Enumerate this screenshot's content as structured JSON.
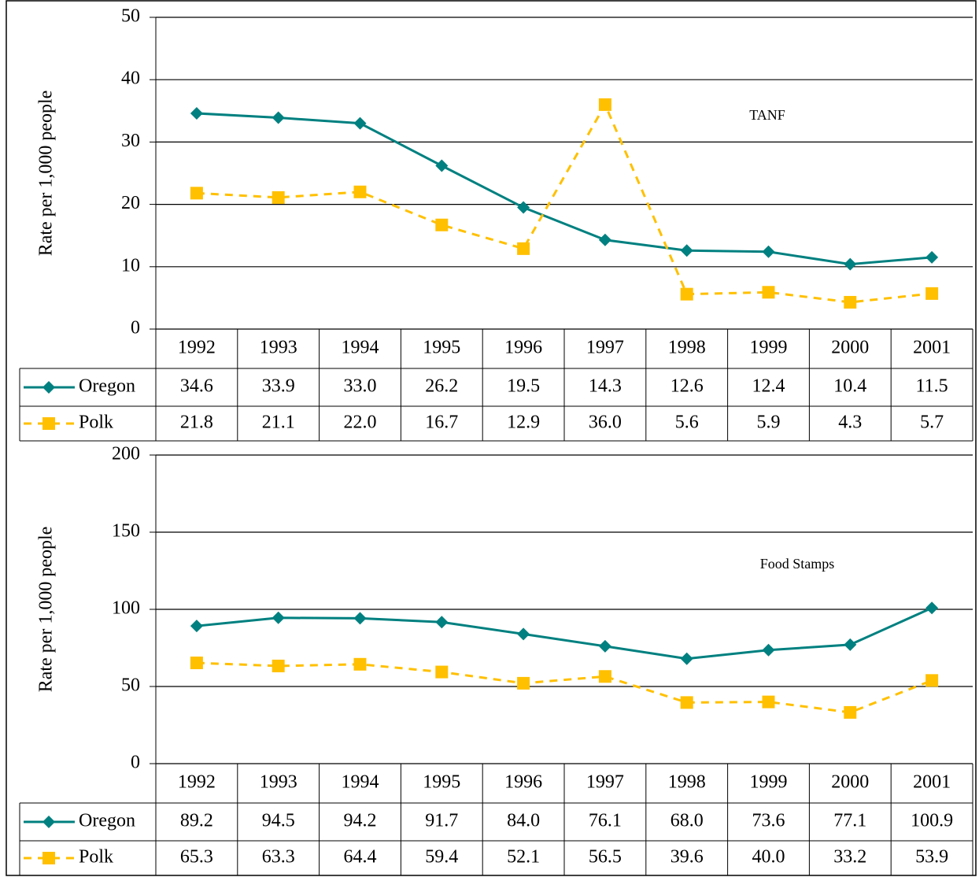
{
  "chart_data": [
    {
      "type": "line",
      "annotation": "TANF",
      "y_label": "Rate per 1,000 people",
      "categories": [
        "1992",
        "1993",
        "1994",
        "1995",
        "1996",
        "1997",
        "1998",
        "1999",
        "2000",
        "2001"
      ],
      "series": [
        {
          "name": "Oregon",
          "color": "#008080",
          "marker": "diamond",
          "dashed": false,
          "values": [
            34.6,
            33.9,
            33.0,
            26.2,
            19.5,
            14.3,
            12.6,
            12.4,
            10.4,
            11.5
          ],
          "value_labels": [
            "34.6",
            "33.9",
            "33.0",
            "26.2",
            "19.5",
            "14.3",
            "12.6",
            "12.4",
            "10.4",
            "11.5"
          ]
        },
        {
          "name": "Polk",
          "color": "#ffc000",
          "marker": "square",
          "dashed": true,
          "values": [
            21.8,
            21.1,
            22.0,
            16.7,
            12.9,
            36.0,
            5.6,
            5.9,
            4.3,
            5.7
          ],
          "value_labels": [
            "21.8",
            "21.1",
            "22.0",
            "16.7",
            "12.9",
            "36.0",
            "5.6",
            "5.9",
            "4.3",
            "5.7"
          ]
        }
      ],
      "ylim": [
        0,
        50
      ],
      "yticks": [
        0,
        10,
        20,
        30,
        40,
        50
      ],
      "grid": true
    },
    {
      "type": "line",
      "annotation": "Food Stamps",
      "y_label": "Rate per 1,000 people",
      "categories": [
        "1992",
        "1993",
        "1994",
        "1995",
        "1996",
        "1997",
        "1998",
        "1999",
        "2000",
        "2001"
      ],
      "series": [
        {
          "name": "Oregon",
          "color": "#008080",
          "marker": "diamond",
          "dashed": false,
          "values": [
            89.2,
            94.5,
            94.2,
            91.7,
            84.0,
            76.1,
            68.0,
            73.6,
            77.1,
            100.9
          ],
          "value_labels": [
            "89.2",
            "94.5",
            "94.2",
            "91.7",
            "84.0",
            "76.1",
            "68.0",
            "73.6",
            "77.1",
            "100.9"
          ]
        },
        {
          "name": "Polk",
          "color": "#ffc000",
          "marker": "square",
          "dashed": true,
          "values": [
            65.3,
            63.3,
            64.4,
            59.4,
            52.1,
            56.5,
            39.6,
            40.0,
            33.2,
            53.9
          ],
          "value_labels": [
            "65.3",
            "63.3",
            "64.4",
            "59.4",
            "52.1",
            "56.5",
            "39.6",
            "40.0",
            "33.2",
            "53.9"
          ]
        }
      ],
      "ylim": [
        0,
        200
      ],
      "yticks": [
        0,
        50,
        100,
        150,
        200
      ],
      "grid": true
    }
  ]
}
